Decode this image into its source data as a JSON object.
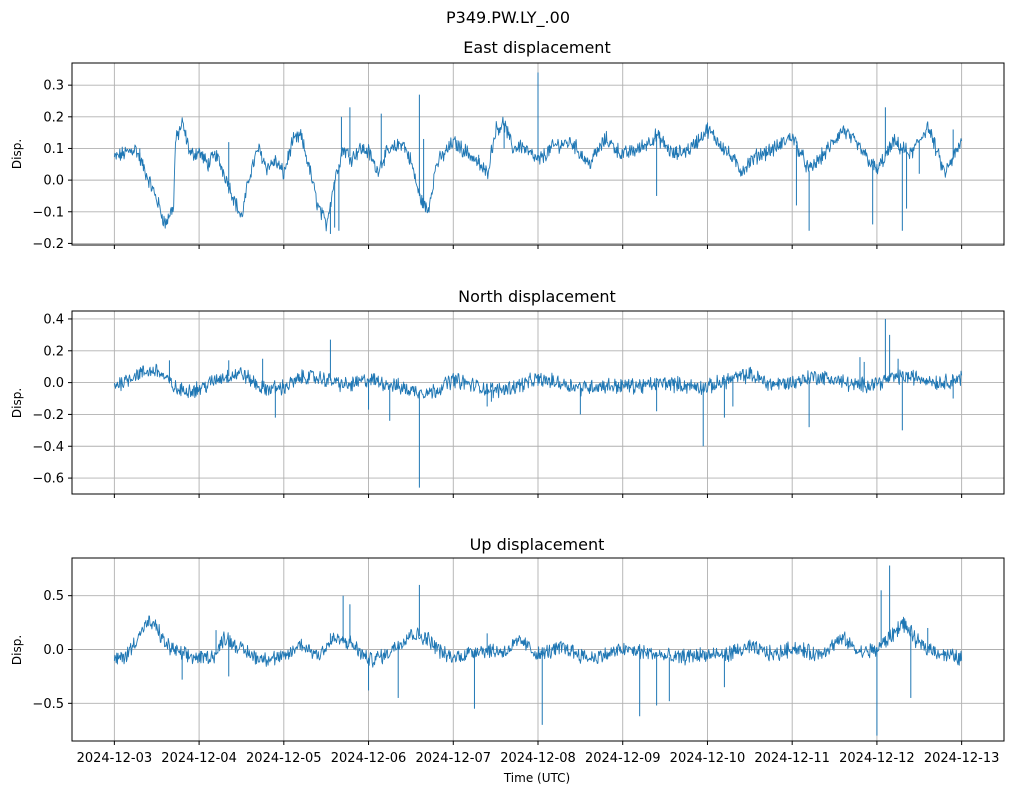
{
  "figure_title": "P349.PW.LY_.00",
  "xlabel": "Time (UTC)",
  "series_color": "#1f77b4",
  "chart_data": [
    {
      "type": "line",
      "title": "East displacement",
      "ylabel": "Disp.",
      "ylim": [
        -0.205,
        0.37
      ],
      "yticks": [
        -0.2,
        -0.1,
        0.0,
        0.1,
        0.2,
        0.3
      ],
      "ytick_labels": [
        "−0.2",
        "−0.1",
        "0.0",
        "0.1",
        "0.2",
        "0.3"
      ],
      "xlim": [
        -0.5,
        10.5
      ],
      "x_days": [
        0,
        0.25,
        0.5,
        0.6,
        0.7,
        0.72,
        0.8,
        0.9,
        1.0,
        1.1,
        1.2,
        1.3,
        1.4,
        1.5,
        1.6,
        1.7,
        1.8,
        1.9,
        2.0,
        2.1,
        2.2,
        2.3,
        2.4,
        2.5,
        2.6,
        2.7,
        2.8,
        2.9,
        3.0,
        3.1,
        3.2,
        3.4,
        3.5,
        3.6,
        3.7,
        3.8,
        4.0,
        4.2,
        4.4,
        4.5,
        4.6,
        4.7,
        4.8,
        5.0,
        5.2,
        5.4,
        5.6,
        5.8,
        6.0,
        6.2,
        6.4,
        6.6,
        6.8,
        7.0,
        7.2,
        7.4,
        7.6,
        7.8,
        8.0,
        8.2,
        8.4,
        8.6,
        8.8,
        9.0,
        9.2,
        9.4,
        9.6,
        9.8,
        10.0
      ],
      "values": [
        0.07,
        0.1,
        -0.06,
        -0.14,
        -0.08,
        0.12,
        0.18,
        0.08,
        0.09,
        0.05,
        0.08,
        0.02,
        -0.05,
        -0.12,
        0.02,
        0.1,
        0.04,
        0.06,
        0.02,
        0.12,
        0.14,
        0.04,
        -0.08,
        -0.14,
        0.0,
        0.1,
        0.07,
        0.1,
        0.09,
        0.03,
        0.08,
        0.12,
        0.06,
        -0.05,
        -0.1,
        0.05,
        0.12,
        0.08,
        0.02,
        0.16,
        0.18,
        0.1,
        0.11,
        0.06,
        0.11,
        0.12,
        0.05,
        0.13,
        0.08,
        0.1,
        0.14,
        0.08,
        0.1,
        0.16,
        0.1,
        0.03,
        0.08,
        0.1,
        0.14,
        0.03,
        0.09,
        0.16,
        0.1,
        0.03,
        0.12,
        0.08,
        0.17,
        0.02,
        0.12
      ],
      "spike_days": [
        0.3,
        1.35,
        2.55,
        2.6,
        2.65,
        2.68,
        2.78,
        3.15,
        3.6,
        3.65,
        4.22,
        4.3,
        4.6,
        5.0,
        6.4,
        7.5,
        7.85,
        8.05,
        8.2,
        8.95,
        9.1,
        9.3,
        9.35,
        9.5,
        9.9
      ],
      "spike_values": [
        0.1,
        0.12,
        -0.17,
        -0.15,
        -0.16,
        0.2,
        0.23,
        0.21,
        0.27,
        0.13,
        0.07,
        0.08,
        0.1,
        0.34,
        -0.05,
        0.07,
        0.1,
        -0.08,
        -0.16,
        -0.14,
        0.23,
        -0.16,
        -0.09,
        0.02,
        0.16
      ]
    },
    {
      "type": "line",
      "title": "North displacement",
      "ylabel": "Disp.",
      "ylim": [
        -0.7,
        0.45
      ],
      "yticks": [
        -0.6,
        -0.4,
        -0.2,
        0.0,
        0.2,
        0.4
      ],
      "ytick_labels": [
        "−0.6",
        "−0.4",
        "−0.2",
        "0.0",
        "0.2",
        "0.4"
      ],
      "xlim": [
        -0.5,
        10.5
      ],
      "x_days": [
        0,
        0.25,
        0.5,
        0.75,
        1.0,
        1.25,
        1.5,
        1.75,
        2.0,
        2.25,
        2.5,
        2.75,
        3.0,
        3.25,
        3.5,
        3.75,
        4.0,
        4.25,
        4.5,
        4.75,
        5.0,
        5.25,
        5.5,
        5.75,
        6.0,
        6.25,
        6.5,
        6.75,
        7.0,
        7.25,
        7.5,
        7.75,
        8.0,
        8.25,
        8.5,
        8.75,
        9.0,
        9.25,
        9.5,
        9.75,
        10.0
      ],
      "values": [
        -0.02,
        0.05,
        0.08,
        -0.05,
        -0.04,
        0.03,
        0.06,
        -0.04,
        -0.03,
        0.04,
        0.02,
        -0.02,
        0.02,
        -0.01,
        -0.05,
        -0.06,
        0.02,
        -0.02,
        -0.05,
        -0.02,
        0.02,
        0.0,
        -0.03,
        -0.02,
        -0.02,
        -0.02,
        0.0,
        -0.02,
        -0.03,
        0.02,
        0.05,
        -0.01,
        0.0,
        0.04,
        0.02,
        -0.02,
        0.0,
        0.04,
        0.03,
        0.0,
        0.03
      ],
      "spike_days": [
        0.65,
        1.35,
        1.75,
        1.9,
        2.55,
        3.0,
        3.25,
        3.6,
        4.4,
        4.45,
        5.5,
        6.4,
        6.95,
        7.2,
        7.3,
        8.2,
        8.8,
        8.85,
        9.1,
        9.15,
        9.25,
        9.3,
        9.9
      ],
      "spike_values": [
        0.14,
        0.14,
        0.15,
        -0.22,
        0.27,
        -0.17,
        -0.24,
        -0.66,
        -0.15,
        -0.12,
        -0.2,
        -0.18,
        -0.4,
        -0.22,
        -0.15,
        -0.28,
        0.16,
        0.13,
        0.4,
        0.3,
        0.15,
        -0.3,
        -0.1
      ]
    },
    {
      "type": "line",
      "title": "Up displacement",
      "ylabel": "Disp.",
      "ylim": [
        -0.85,
        0.85
      ],
      "yticks": [
        -0.5,
        0.0,
        0.5
      ],
      "ytick_labels": [
        "−0.5",
        "0.0",
        "0.5"
      ],
      "xlim": [
        -0.5,
        10.5
      ],
      "x_days": [
        0,
        0.15,
        0.3,
        0.4,
        0.5,
        0.6,
        0.8,
        1.0,
        1.2,
        1.3,
        1.5,
        1.7,
        2.0,
        2.2,
        2.4,
        2.6,
        2.8,
        3.0,
        3.2,
        3.5,
        3.7,
        3.9,
        4.0,
        4.3,
        4.6,
        4.8,
        5.0,
        5.3,
        5.6,
        5.8,
        6.0,
        6.3,
        6.6,
        6.9,
        7.2,
        7.5,
        7.8,
        8.0,
        8.3,
        8.6,
        8.8,
        9.0,
        9.2,
        9.3,
        9.5,
        9.8,
        10.0
      ],
      "values": [
        -0.1,
        -0.05,
        0.15,
        0.25,
        0.2,
        0.05,
        -0.05,
        -0.08,
        -0.05,
        0.12,
        0.0,
        -0.08,
        -0.08,
        0.05,
        -0.05,
        0.1,
        0.05,
        -0.1,
        -0.05,
        0.15,
        0.1,
        -0.05,
        -0.08,
        0.0,
        -0.02,
        0.08,
        -0.05,
        0.02,
        -0.08,
        -0.05,
        0.0,
        -0.03,
        -0.08,
        -0.05,
        -0.05,
        0.02,
        -0.05,
        0.02,
        -0.05,
        0.1,
        -0.03,
        0.0,
        0.15,
        0.25,
        0.05,
        -0.05,
        -0.08
      ],
      "spike_days": [
        0.8,
        1.35,
        1.2,
        2.55,
        2.7,
        2.78,
        3.0,
        3.35,
        3.6,
        4.25,
        4.4,
        5.05,
        6.2,
        6.4,
        6.55,
        7.2,
        9.0,
        9.05,
        9.15,
        9.4,
        9.6
      ],
      "spike_values": [
        -0.28,
        -0.25,
        0.18,
        0.15,
        0.5,
        0.42,
        -0.38,
        -0.45,
        0.6,
        -0.55,
        0.15,
        -0.7,
        -0.62,
        -0.52,
        -0.48,
        -0.35,
        -0.8,
        0.55,
        0.78,
        -0.45,
        0.2
      ]
    }
  ],
  "x_ticks": [
    "2024-12-03",
    "2024-12-04",
    "2024-12-05",
    "2024-12-06",
    "2024-12-07",
    "2024-12-08",
    "2024-12-09",
    "2024-12-10",
    "2024-12-11",
    "2024-12-12",
    "2024-12-13"
  ]
}
